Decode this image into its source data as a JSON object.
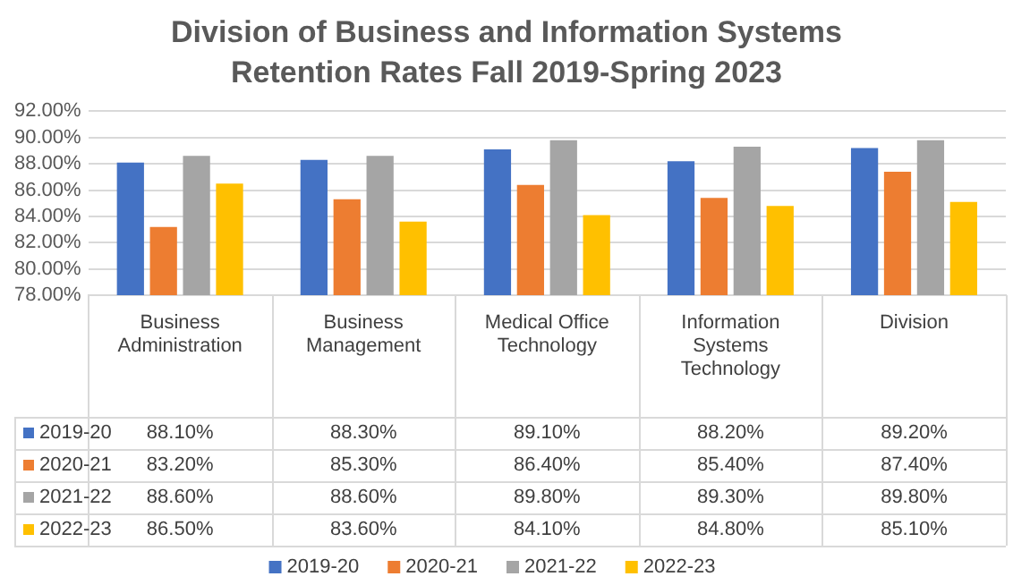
{
  "chart_data": {
    "type": "bar",
    "title": "Division of Business and Information Systems\nRetention Rates Fall 2019-Spring 2023",
    "categories": [
      "Business Administration",
      "Business Management",
      "Medical Office Technology",
      "Information Systems Technology",
      "Division"
    ],
    "series": [
      {
        "name": "2019-20",
        "color": "#4472c4",
        "values": [
          88.1,
          88.3,
          89.1,
          88.2,
          89.2
        ],
        "value_labels": [
          "88.10%",
          "88.30%",
          "89.10%",
          "88.20%",
          "89.20%"
        ]
      },
      {
        "name": "2020-21",
        "color": "#ed7d31",
        "values": [
          83.2,
          85.3,
          86.4,
          85.4,
          87.4
        ],
        "value_labels": [
          "83.20%",
          "85.30%",
          "86.40%",
          "85.40%",
          "87.40%"
        ]
      },
      {
        "name": "2021-22",
        "color": "#a5a5a5",
        "values": [
          88.6,
          88.6,
          89.8,
          89.3,
          89.8
        ],
        "value_labels": [
          "88.60%",
          "88.60%",
          "89.80%",
          "89.30%",
          "89.80%"
        ]
      },
      {
        "name": "2022-23",
        "color": "#ffc000",
        "values": [
          86.5,
          83.6,
          84.1,
          84.8,
          85.1
        ],
        "value_labels": [
          "86.50%",
          "83.60%",
          "84.10%",
          "84.80%",
          "85.10%"
        ]
      }
    ],
    "ylim": [
      78,
      92
    ],
    "yticks": [
      {
        "value": 78,
        "label": "78.00%"
      },
      {
        "value": 80,
        "label": "80.00%"
      },
      {
        "value": 82,
        "label": "82.00%"
      },
      {
        "value": 84,
        "label": "84.00%"
      },
      {
        "value": 86,
        "label": "86.00%"
      },
      {
        "value": 88,
        "label": "88.00%"
      },
      {
        "value": 90,
        "label": "90.00%"
      },
      {
        "value": 92,
        "label": "92.00%"
      }
    ],
    "grid": "y",
    "legend": "bottom"
  }
}
